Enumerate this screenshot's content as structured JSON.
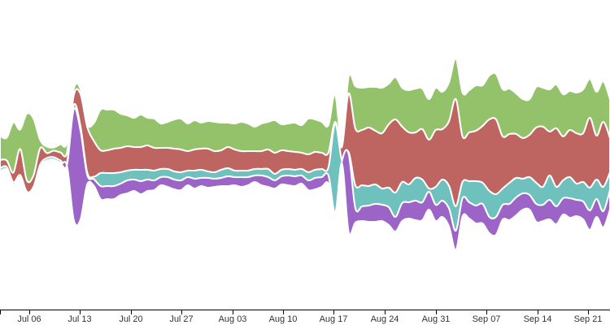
{
  "chart_data": {
    "type": "area",
    "layout": "streamgraph",
    "x_axis_ticks": [
      "Jul 06",
      "Jul 13",
      "Jul 20",
      "Jul 27",
      "Aug 03",
      "Aug 10",
      "Aug 17",
      "Aug 24",
      "Aug 31",
      "Sep 07",
      "Sep 14",
      "Sep 21"
    ],
    "series": [
      {
        "color": "#94c26b",
        "values": [
          30,
          28,
          62,
          24,
          82,
          70,
          10,
          8,
          4,
          10,
          12,
          8,
          6,
          3,
          22,
          50,
          50,
          48,
          42,
          38,
          36,
          40,
          34,
          36,
          30,
          32,
          36,
          38,
          34,
          36,
          32,
          34,
          36,
          34,
          30,
          32,
          36,
          34,
          30,
          34,
          34,
          40,
          32,
          34,
          36,
          34,
          44,
          40,
          38,
          34,
          34,
          2,
          20,
          52,
          52,
          50,
          54,
          56,
          50,
          52,
          48,
          52,
          54,
          50,
          50,
          52,
          46,
          48,
          50,
          54,
          52,
          56,
          50,
          54,
          56,
          58,
          56,
          50,
          48,
          44,
          50,
          48,
          52,
          54,
          52,
          48,
          50,
          54,
          48,
          54,
          50,
          48
        ]
      },
      {
        "color": "#be6561",
        "values": [
          10,
          8,
          12,
          32,
          14,
          14,
          20,
          6,
          8,
          10,
          12,
          12,
          40,
          56,
          44,
          28,
          28,
          30,
          30,
          30,
          28,
          28,
          30,
          28,
          26,
          26,
          28,
          28,
          24,
          26,
          26,
          28,
          26,
          24,
          26,
          26,
          24,
          24,
          22,
          22,
          24,
          26,
          24,
          22,
          22,
          20,
          22,
          22,
          20,
          18,
          2,
          16,
          72,
          70,
          68,
          72,
          66,
          68,
          78,
          90,
          68,
          64,
          56,
          62,
          60,
          70,
          62,
          80,
          132,
          56,
          60,
          62,
          70,
          88,
          92,
          64,
          60,
          54,
          50,
          52,
          68,
          74,
          54,
          72,
          54,
          58,
          62,
          60,
          86,
          54,
          80,
          42
        ]
      },
      {
        "color": "#6ec1bd",
        "values": [
          4,
          3,
          3,
          3,
          2,
          2,
          3,
          3,
          3,
          3,
          3,
          5,
          5,
          3,
          3,
          16,
          16,
          16,
          14,
          12,
          12,
          14,
          12,
          12,
          10,
          10,
          10,
          10,
          8,
          10,
          10,
          8,
          8,
          10,
          10,
          8,
          8,
          8,
          8,
          8,
          10,
          8,
          8,
          8,
          8,
          8,
          10,
          10,
          10,
          10,
          110,
          2,
          2,
          28,
          26,
          24,
          24,
          20,
          24,
          30,
          26,
          22,
          28,
          28,
          4,
          22,
          26,
          28,
          30,
          20,
          26,
          30,
          26,
          32,
          28,
          20,
          26,
          24,
          18,
          22,
          26,
          22,
          30,
          24,
          22,
          26,
          20,
          24,
          28,
          24,
          30,
          22
        ]
      },
      {
        "color": "#9b64c6",
        "values": [
          2,
          2,
          2,
          2,
          2,
          2,
          2,
          2,
          2,
          2,
          2,
          136,
          110,
          12,
          8,
          16,
          16,
          16,
          14,
          16,
          14,
          16,
          14,
          12,
          10,
          12,
          12,
          12,
          10,
          12,
          10,
          12,
          10,
          10,
          12,
          10,
          12,
          10,
          8,
          12,
          12,
          10,
          10,
          12,
          12,
          10,
          12,
          14,
          12,
          10,
          2,
          2,
          96,
          18,
          18,
          20,
          22,
          20,
          22,
          18,
          22,
          20,
          24,
          22,
          22,
          20,
          20,
          22,
          24,
          22,
          20,
          22,
          24,
          20,
          22,
          18,
          20,
          22,
          20,
          18,
          22,
          20,
          24,
          22,
          20,
          24,
          20,
          22,
          24,
          22,
          20,
          24
        ]
      }
    ],
    "grid": false,
    "legend": "none"
  }
}
